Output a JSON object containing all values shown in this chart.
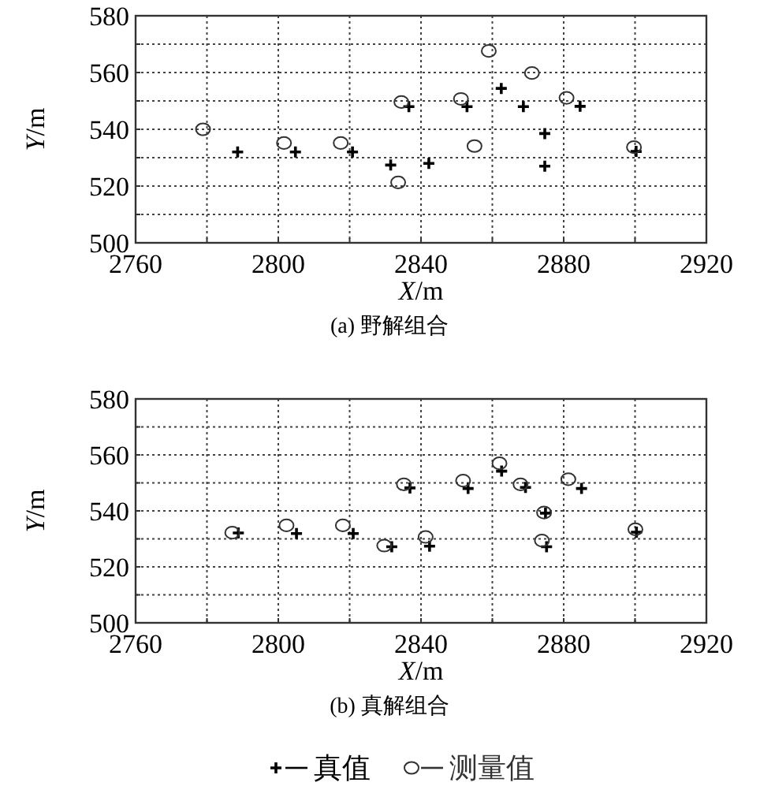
{
  "chart_data": [
    {
      "type": "scatter",
      "title": "(a) 野解组合",
      "xlabel": "X/m",
      "ylabel": "Y/m",
      "xlim": [
        2760,
        2920
      ],
      "ylim": [
        500,
        580
      ],
      "xticks": [
        2760,
        {
          "value": 2780,
          "label": null
        },
        2800,
        {
          "value": 2820,
          "label": null
        },
        2840,
        {
          "value": 2860,
          "label": null
        },
        2880,
        {
          "value": 2900,
          "label": null
        },
        2920
      ],
      "yticks": [
        500,
        {
          "value": 510,
          "label": null
        },
        520,
        {
          "value": 530,
          "label": null
        },
        540,
        {
          "value": 550,
          "label": null
        },
        560,
        {
          "value": 570,
          "label": null
        },
        580
      ],
      "grid": true,
      "legend": false,
      "series": [
        {
          "color": "#000000",
          "marker": "cross",
          "x": [
            2788.6,
            2804.8,
            2820.8,
            2831.5,
            2842.2,
            2836.6,
            2852.9,
            2862.5,
            2868.7,
            2874.7,
            2874.7,
            2884.6,
            2900.3
          ],
          "values": [
            532,
            532,
            532,
            527.4,
            528,
            548,
            548,
            554.4,
            548,
            538.5,
            527,
            548.1,
            532.2
          ]
        },
        {
          "color": "#333333",
          "marker": "circle",
          "x": [
            2778.9,
            2801.6,
            2817.5,
            2833.6,
            2834.5,
            2851.2,
            2855,
            2859,
            2871.1,
            2880.8,
            2899.7
          ],
          "values": [
            540,
            535.2,
            535.2,
            521.3,
            549.6,
            550.7,
            534.1,
            567.6,
            559.8,
            551.1,
            533.7
          ]
        }
      ]
    },
    {
      "type": "scatter",
      "title": "(b) 真解组合",
      "xlabel": "X/m",
      "ylabel": "Y/m",
      "xlim": [
        2760,
        2920
      ],
      "ylim": [
        500,
        580
      ],
      "xticks": [
        2760,
        {
          "value": 2780,
          "label": null
        },
        2800,
        {
          "value": 2820,
          "label": null
        },
        2840,
        {
          "value": 2860,
          "label": null
        },
        2880,
        {
          "value": 2900,
          "label": null
        },
        2920
      ],
      "yticks": [
        500,
        {
          "value": 510,
          "label": null
        },
        520,
        {
          "value": 530,
          "label": null
        },
        540,
        {
          "value": 550,
          "label": null
        },
        560,
        {
          "value": 570,
          "label": null
        },
        580
      ],
      "grid": true,
      "legend": "bottom",
      "series": [
        {
          "name": "真值",
          "color": "#000000",
          "marker": "cross",
          "x": [
            2788.8,
            2805.1,
            2821,
            2831.8,
            2842.4,
            2836.9,
            2853.2,
            2862.6,
            2869.3,
            2874.9,
            2875.2,
            2885,
            2900.4
          ],
          "values": [
            532.1,
            531.9,
            531.9,
            527.2,
            527.4,
            548.2,
            548,
            554.2,
            548.4,
            539.2,
            527.2,
            548,
            532.4
          ]
        },
        {
          "name": "测量值",
          "color": "#333333",
          "marker": "circle",
          "x": [
            2787.1,
            2802.3,
            2818.1,
            2829.7,
            2841.3,
            2835.2,
            2851.8,
            2862,
            2867.9,
            2874.5,
            2873.9,
            2881.3,
            2900.1
          ],
          "values": [
            532.2,
            534.8,
            534.8,
            527.6,
            530.7,
            549.5,
            550.8,
            557,
            549.5,
            539.4,
            529.4,
            551.3,
            533.4
          ]
        }
      ]
    }
  ]
}
